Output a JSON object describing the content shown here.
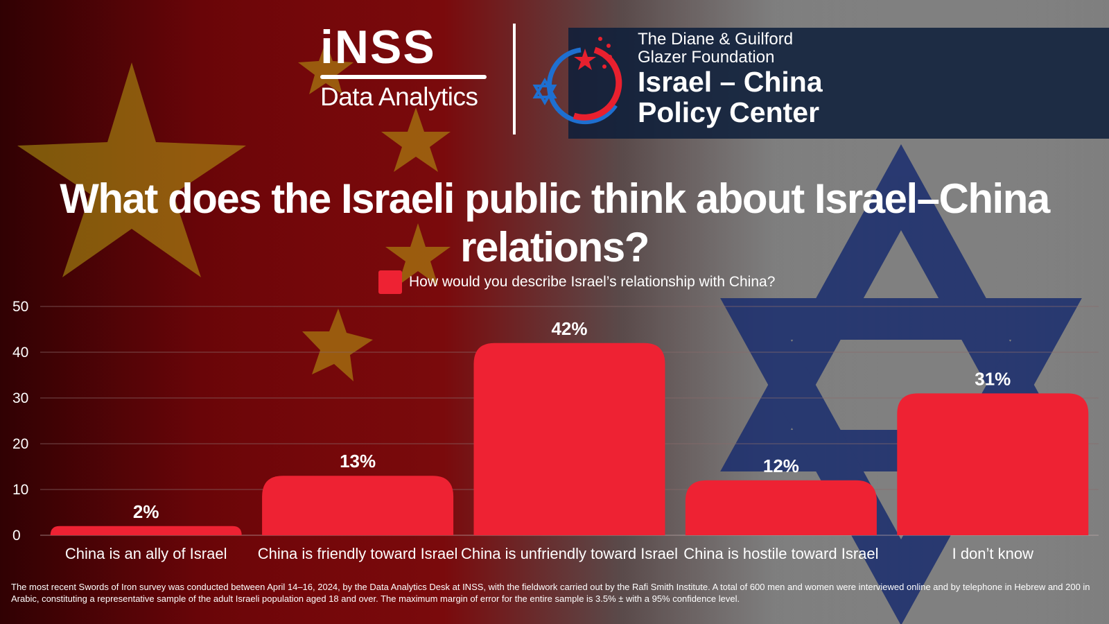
{
  "header": {
    "inss_word": "iNSS",
    "inss_subtitle": "Data Analytics",
    "foundation_line1": "The Diane & Guilford",
    "foundation_line2": "Glazer Foundation",
    "center_line1": "Israel – China",
    "center_line2": "Policy Center"
  },
  "title": "What does the Israeli public think about Israel–China relations?",
  "footnote": "The most recent Swords of Iron survey was conducted between April 14–16, 2024, by the Data Analytics Desk at INSS, with the fieldwork carried out by the Rafi Smith Institute. A total of 600 men and women were interviewed online and by telephone in Hebrew and 200 in Arabic, constituting a representative sample of the adult Israeli population aged 18 and over. The maximum margin of error for the entire sample is 3.5% ± with a 95% confidence level.",
  "colors": {
    "bar": "#ee2233",
    "grid": "#8a6a6a"
  },
  "chart_data": {
    "type": "bar",
    "title": "What does the Israeli public think about Israel–China relations?",
    "categories": [
      "China is an ally of Israel",
      "China is friendly toward Israel",
      "China is unfriendly toward Israel",
      "China is hostile toward Israel",
      "I don’t know"
    ],
    "series": [
      {
        "name": "How would you describe Israel’s relationship with China?",
        "values": [
          2,
          13,
          42,
          12,
          31
        ],
        "data_labels": [
          "2%",
          "13%",
          "42%",
          "12%",
          "31%"
        ]
      }
    ],
    "y_ticks": [
      0,
      10,
      20,
      30,
      40,
      50
    ],
    "ylim": [
      0,
      50
    ],
    "grid": true,
    "legend": "top-center"
  }
}
